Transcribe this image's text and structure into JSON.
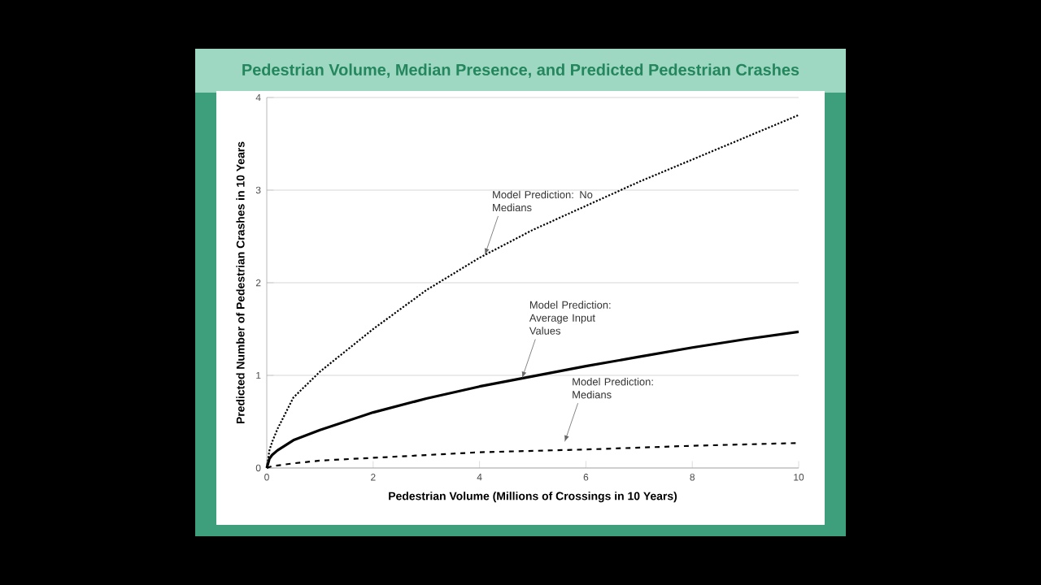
{
  "chart_data": {
    "type": "line",
    "title": "Pedestrian Volume, Median Presence, and Predicted Pedestrian Crashes",
    "xlabel": "Pedestrian Volume (Millions of Crossings in 10 Years)",
    "ylabel": "Predicted Number of Pedestrian Crashes in 10 Years",
    "xlim": [
      0,
      10
    ],
    "ylim": [
      0,
      4
    ],
    "xticks": [
      0,
      2,
      4,
      6,
      8,
      10
    ],
    "yticks": [
      0,
      1,
      2,
      3,
      4
    ],
    "grid": "y",
    "series": [
      {
        "color": "#000000",
        "line_style": "dotted",
        "x": [
          0,
          0.05,
          0.1,
          0.2,
          0.5,
          1,
          2,
          3,
          4,
          5,
          6,
          7,
          8,
          9,
          10
        ],
        "values": [
          0,
          0.19,
          0.28,
          0.42,
          0.76,
          1.04,
          1.5,
          1.92,
          2.27,
          2.57,
          2.83,
          3.09,
          3.33,
          3.57,
          3.81
        ]
      },
      {
        "color": "#000000",
        "line_style": "solid",
        "x": [
          0,
          0.05,
          0.1,
          0.2,
          0.5,
          1,
          2,
          3,
          4,
          5,
          6,
          7,
          8,
          9,
          10
        ],
        "values": [
          0,
          0.1,
          0.14,
          0.19,
          0.3,
          0.41,
          0.6,
          0.75,
          0.88,
          0.99,
          1.1,
          1.2,
          1.3,
          1.39,
          1.47
        ]
      },
      {
        "color": "#000000",
        "line_style": "dashed",
        "x": [
          0,
          0.1,
          0.5,
          1,
          2,
          4,
          6,
          8,
          10
        ],
        "values": [
          0,
          0.02,
          0.05,
          0.08,
          0.11,
          0.17,
          0.2,
          0.24,
          0.27
        ]
      }
    ],
    "annotations": [
      {
        "text": "Model Prediction: No Medians",
        "x": 4.1,
        "y": 2.3
      },
      {
        "text": "Model Prediction: Average Input Values",
        "x": 4.8,
        "y": 0.97
      },
      {
        "text": "Model Prediction: Medians",
        "x": 5.6,
        "y": 0.28
      }
    ]
  }
}
